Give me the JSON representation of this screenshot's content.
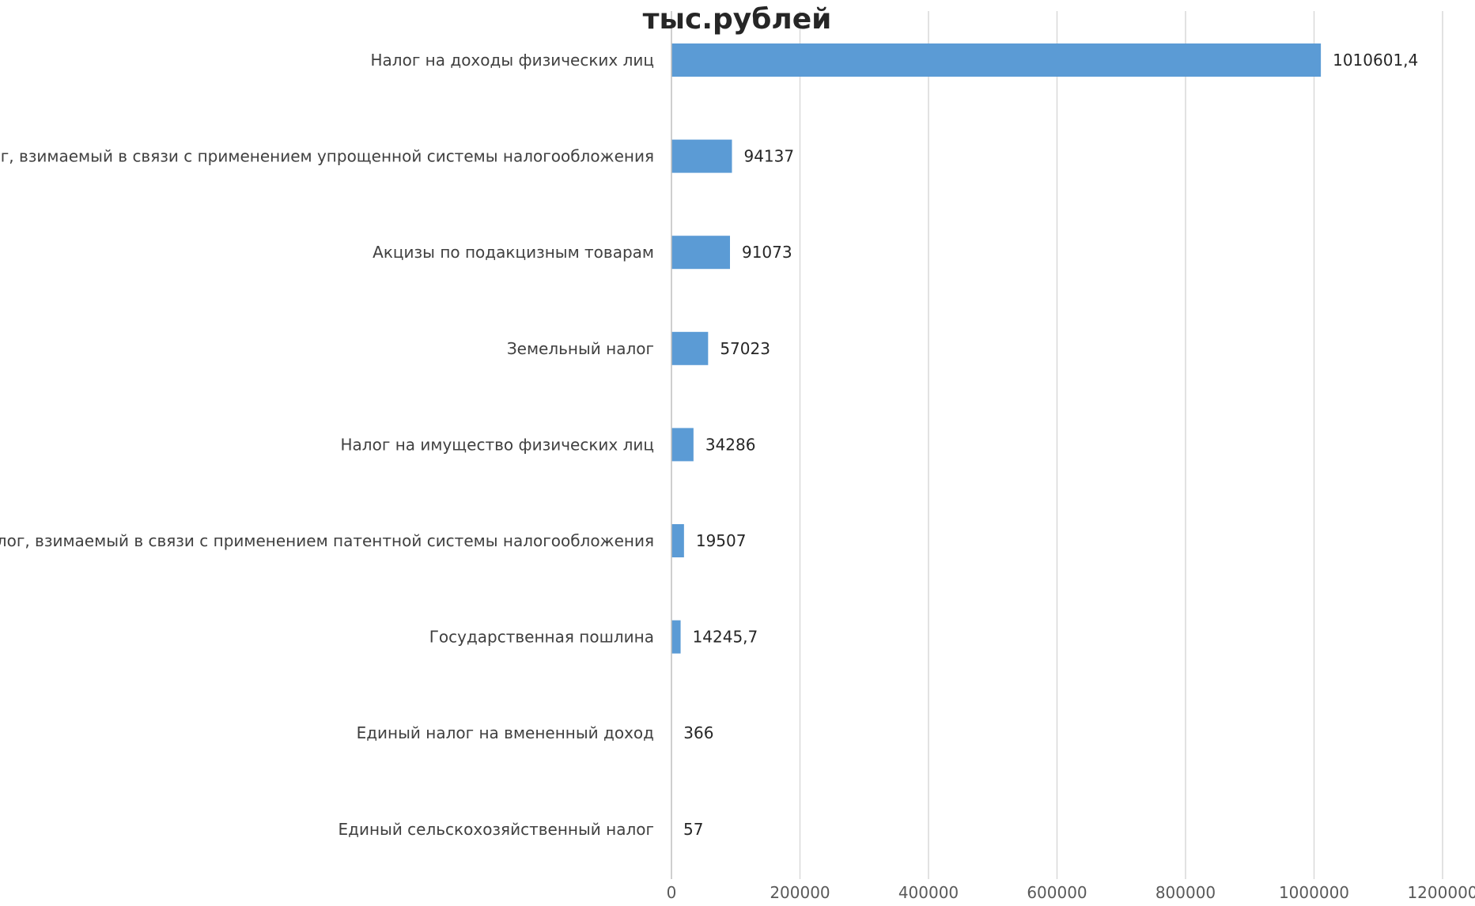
{
  "chart_data": {
    "type": "bar",
    "orientation": "horizontal",
    "title": "тыс.рублей",
    "xlabel": "",
    "ylabel": "",
    "xlim": [
      0,
      1200000
    ],
    "x_ticks": [
      0,
      200000,
      400000,
      600000,
      800000,
      1000000,
      1200000
    ],
    "x_tick_labels": [
      "0",
      "200000",
      "400000",
      "600000",
      "800000",
      "1000000",
      "1200000"
    ],
    "grid": "vertical",
    "legend": "none",
    "bar_color": "#5b9bd5",
    "categories": [
      "Налог на доходы физических лиц",
      "Налог, взимаемый в связи с применением упрощенной системы налогообложения",
      "Акцизы по подакцизным товарам",
      "Земельный налог",
      "Налог на имущество физических лиц",
      "Налог, взимаемый в связи с применением патентной системы налогообложения",
      "Государственная пошлина",
      "Единый налог на вмененный доход",
      "Единый сельскохозяйственный налог"
    ],
    "values": [
      1010601.4,
      94137,
      91073,
      57023,
      34286,
      19507,
      14245.7,
      366,
      57
    ],
    "data_labels": [
      "1010601,4",
      "94137",
      "91073",
      "57023",
      "34286",
      "19507",
      "14245,7",
      "366",
      "57"
    ]
  }
}
